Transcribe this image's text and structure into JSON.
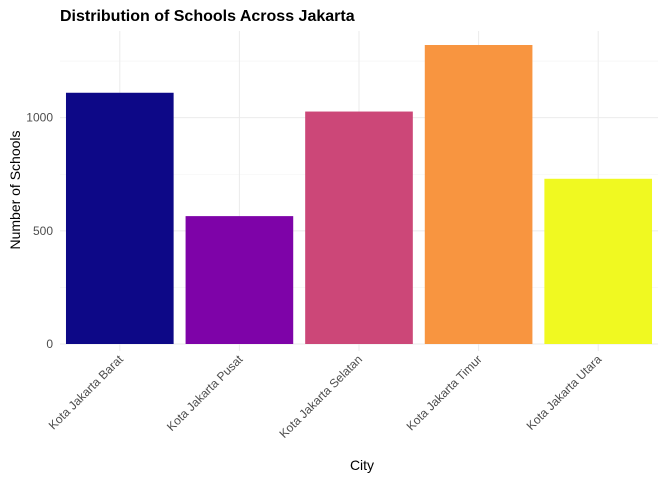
{
  "chart_data": {
    "type": "bar",
    "title": "Distribution of Schools Across Jakarta",
    "xlabel": "City",
    "ylabel": "Number of Schools",
    "categories": [
      "Kota Jakarta Barat",
      "Kota Jakarta Pusat",
      "Kota Jakarta Selatan",
      "Kota Jakarta Timur",
      "Kota Jakarta Utara"
    ],
    "values": [
      1110,
      565,
      1027,
      1321,
      730
    ],
    "colors": [
      "#0d0887",
      "#7e03a8",
      "#cc4778",
      "#f89540",
      "#f0f921"
    ],
    "ylim": [
      0,
      1321
    ],
    "yticks": [
      0,
      500,
      1000
    ],
    "grid": true,
    "legend": "none"
  }
}
